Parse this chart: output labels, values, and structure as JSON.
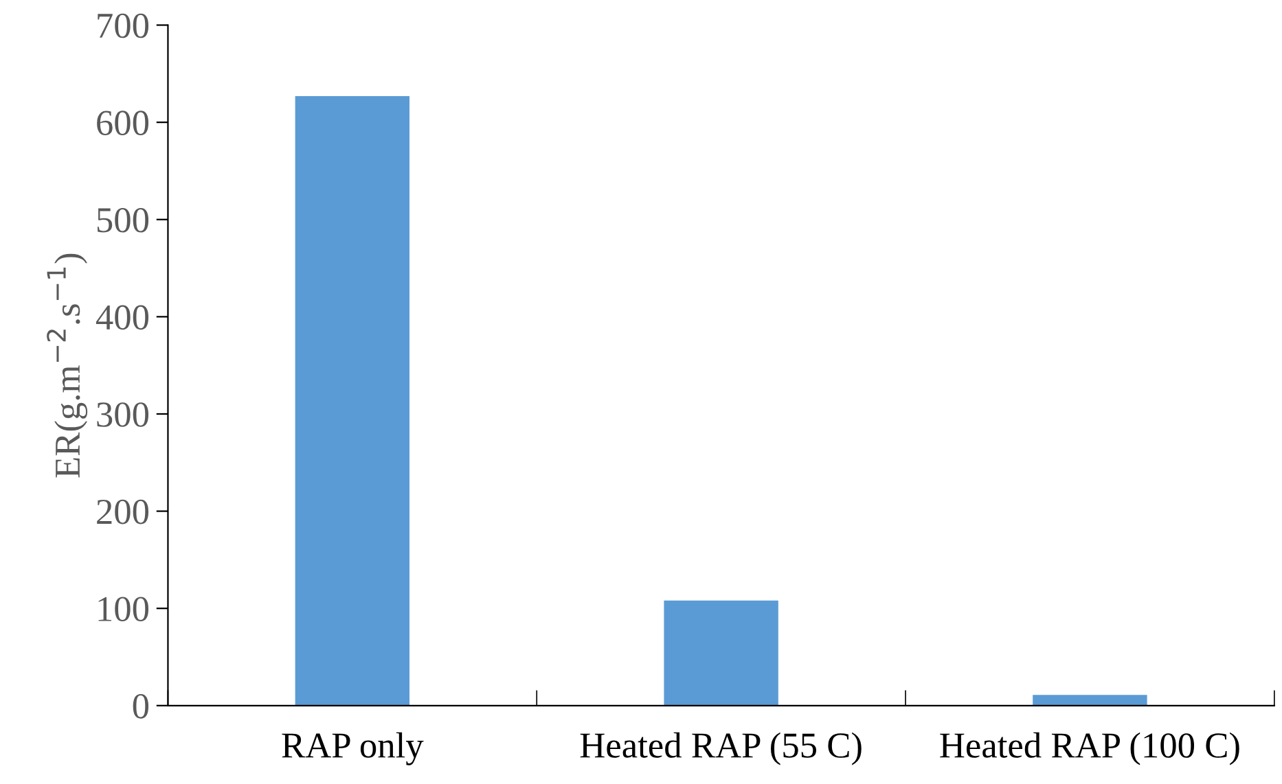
{
  "chart_data": {
    "type": "bar",
    "categories": [
      "RAP only",
      "Heated RAP (55 C)",
      "Heated RAP (100 C)"
    ],
    "values": [
      627,
      108,
      11
    ],
    "color": "#5b9bd5",
    "ylabel": "ER(g.m$^{−2}$.s$^{−1}$)",
    "ylim": [
      0,
      700
    ],
    "yticks": [
      0,
      100,
      200,
      300,
      400,
      500,
      600,
      700
    ],
    "grid": false,
    "legend": false
  }
}
